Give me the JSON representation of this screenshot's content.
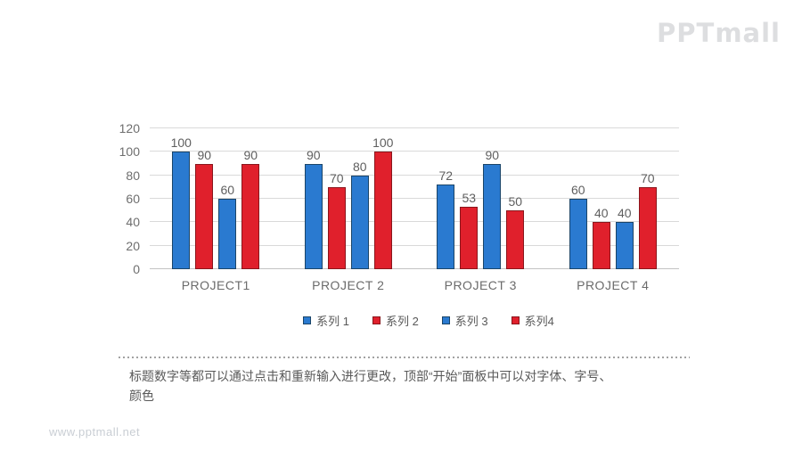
{
  "branding": {
    "logo": "PPTmall",
    "watermark": "www.pptmall.net"
  },
  "note": {
    "line1": "标题数字等都可以通过点击和重新输入进行更改，顶部“开始”面板中可以对字体、字号、",
    "line2": "颜色"
  },
  "chart_data": {
    "type": "bar",
    "title": "",
    "xlabel": "",
    "ylabel": "",
    "categories": [
      "PROJECT1",
      "PROJECT 2",
      "PROJECT 3",
      "PROJECT 4"
    ],
    "series": [
      {
        "name": "系列 1",
        "color": "#2a7ad0",
        "border": "#1b4569",
        "values": [
          100,
          90,
          72,
          60
        ]
      },
      {
        "name": "系列 2",
        "color": "#e0202c",
        "border": "#8a161c",
        "values": [
          90,
          70,
          53,
          40
        ]
      },
      {
        "name": "系列 3",
        "color": "#2a7ad0",
        "border": "#1b4569",
        "values": [
          60,
          80,
          90,
          40
        ]
      },
      {
        "name": "系列4",
        "color": "#e0202c",
        "border": "#8a161c",
        "values": [
          90,
          100,
          50,
          70
        ]
      }
    ],
    "ylim": [
      0,
      120
    ],
    "yticks": [
      0,
      20,
      40,
      60,
      80,
      100,
      120
    ],
    "grid": true,
    "legend_position": "bottom",
    "value_labels": true
  }
}
